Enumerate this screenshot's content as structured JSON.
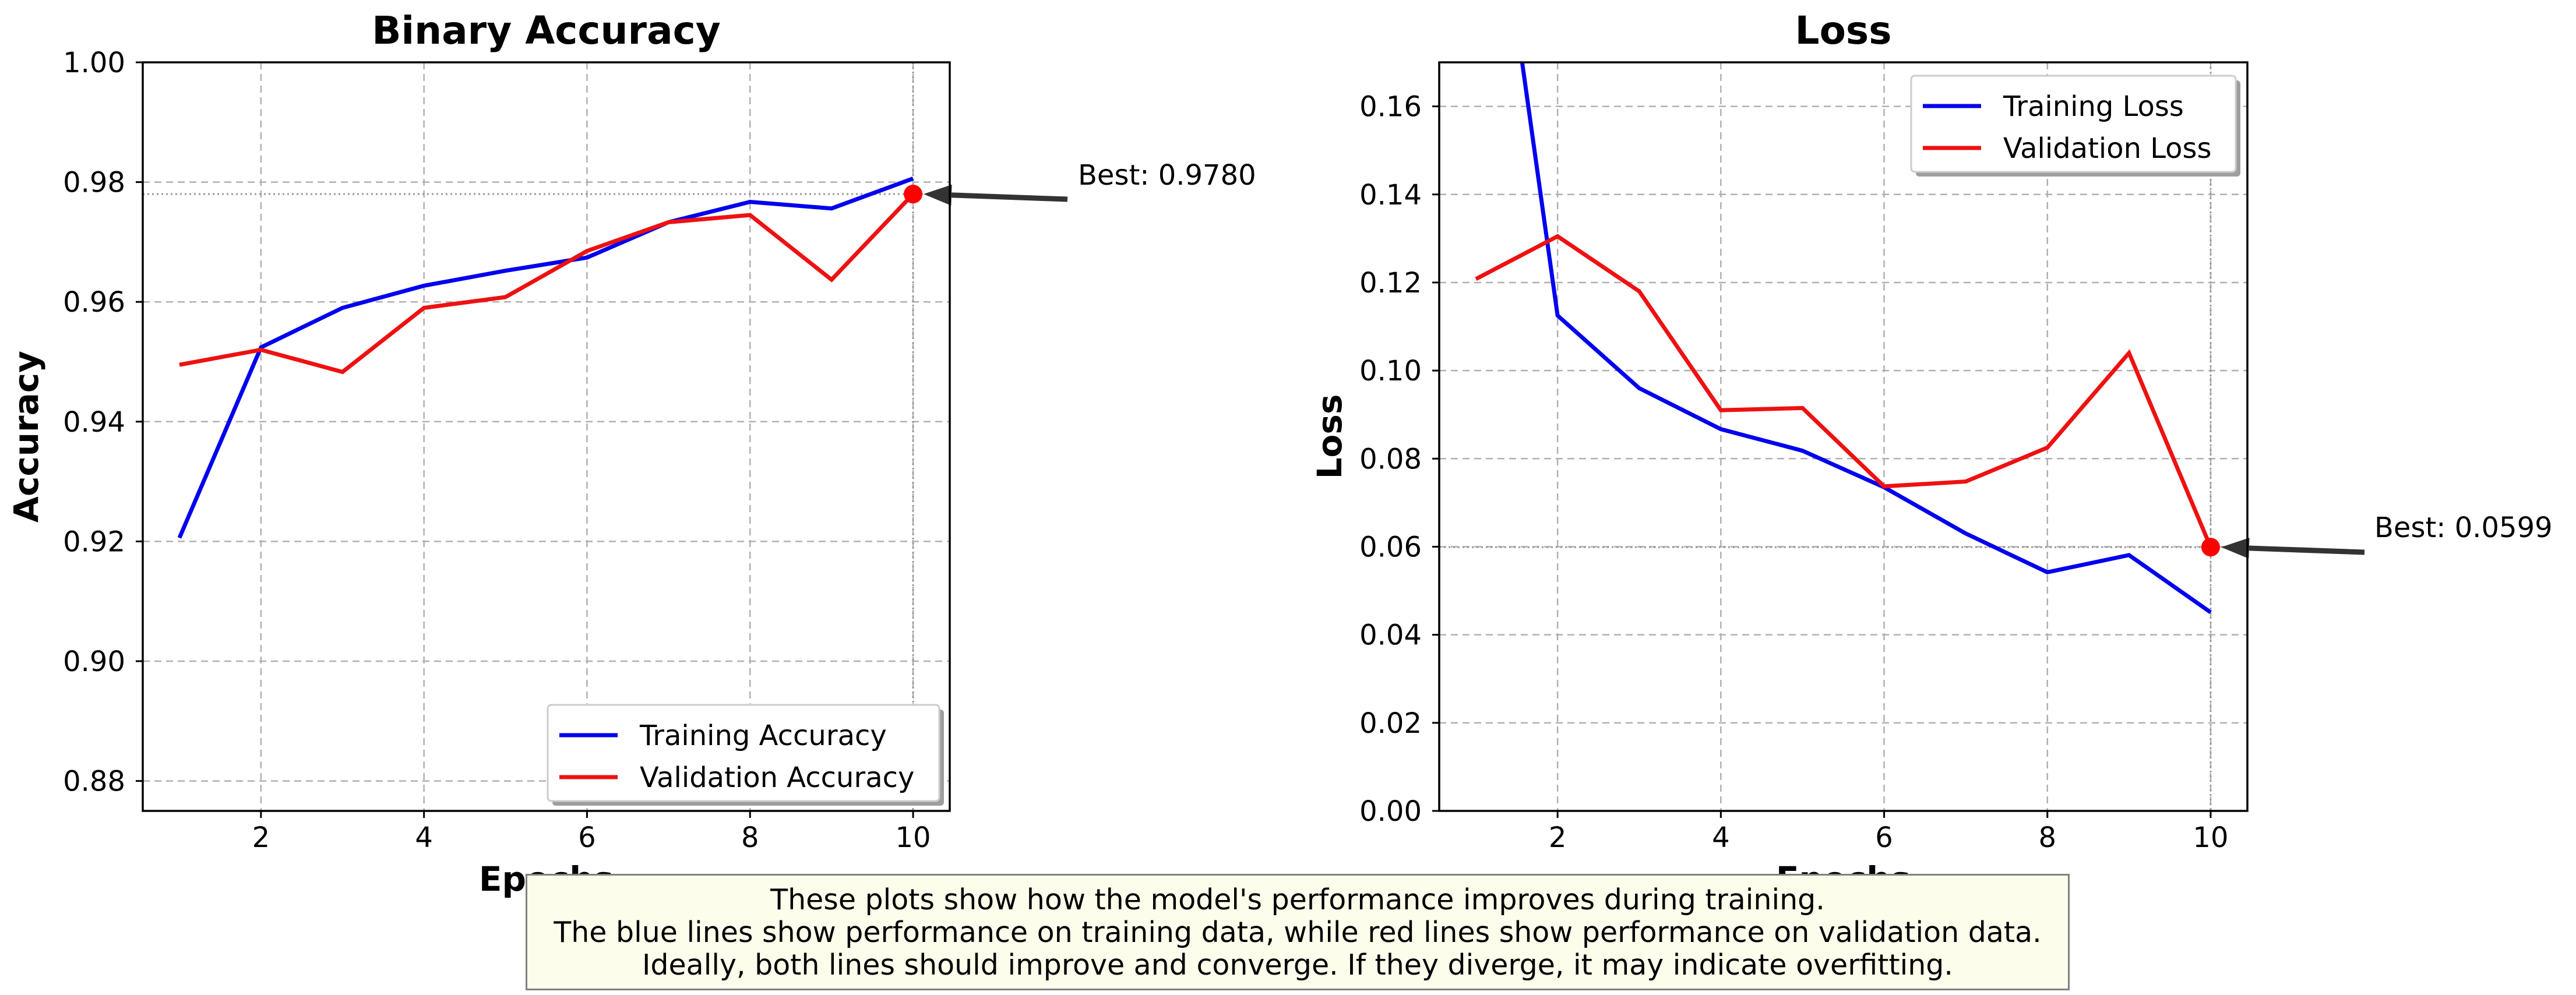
{
  "colors": {
    "training": "#0000ee",
    "validation": "#ee1111",
    "grid": "#b0b0b0",
    "annotation": "#333333"
  },
  "chart_data": [
    {
      "type": "line",
      "title": "Binary Accuracy",
      "xlabel": "Epochs",
      "ylabel": "Accuracy",
      "xlim": [
        0.55,
        10.45
      ],
      "ylim": [
        0.875,
        1.0
      ],
      "xticks": [
        "2",
        "4",
        "6",
        "8",
        "10"
      ],
      "yticks": [
        "0.88",
        "0.90",
        "0.92",
        "0.94",
        "0.96",
        "0.98",
        "1.00"
      ],
      "grid": true,
      "legend_position": "lower-right",
      "x": [
        1,
        2,
        3,
        4,
        5,
        6,
        7,
        8,
        9,
        10
      ],
      "series": [
        {
          "name": "Training Accuracy",
          "values": [
            0.9206,
            0.9524,
            0.959,
            0.9627,
            0.9652,
            0.9674,
            0.9733,
            0.9767,
            0.9756,
            0.9806
          ]
        },
        {
          "name": "Validation Accuracy",
          "values": [
            0.9495,
            0.952,
            0.9483,
            0.959,
            0.9608,
            0.9685,
            0.9733,
            0.9745,
            0.9637,
            0.978
          ]
        }
      ],
      "best": {
        "x": 10,
        "y": 0.978,
        "label": "Best: 0.9780"
      }
    },
    {
      "type": "line",
      "title": "Loss",
      "xlabel": "Epochs",
      "ylabel": "Loss",
      "xlim": [
        0.55,
        10.45
      ],
      "ylim": [
        0.0,
        0.17
      ],
      "xticks": [
        "2",
        "4",
        "6",
        "8",
        "10"
      ],
      "yticks": [
        "0.00",
        "0.02",
        "0.04",
        "0.06",
        "0.08",
        "0.10",
        "0.12",
        "0.14",
        "0.16"
      ],
      "grid": true,
      "legend_position": "upper-right",
      "x": [
        1,
        2,
        3,
        4,
        5,
        6,
        7,
        8,
        9,
        10
      ],
      "series": [
        {
          "name": "Training Loss",
          "values": [
            0.245,
            0.1125,
            0.096,
            0.0867,
            0.0818,
            0.0735,
            0.063,
            0.0542,
            0.0581,
            0.0451
          ]
        },
        {
          "name": "Validation Loss",
          "values": [
            0.1208,
            0.1305,
            0.118,
            0.091,
            0.0915,
            0.0737,
            0.0748,
            0.0825,
            0.104,
            0.0599
          ]
        }
      ],
      "best": {
        "x": 10,
        "y": 0.0599,
        "label": "Best: 0.0599"
      }
    }
  ],
  "note": {
    "lines": [
      "These plots show how the model's performance improves during training.",
      "The blue lines show performance on training data, while red lines show performance on validation data.",
      "Ideally, both lines should improve and converge. If they diverge, it may indicate overfitting."
    ]
  }
}
